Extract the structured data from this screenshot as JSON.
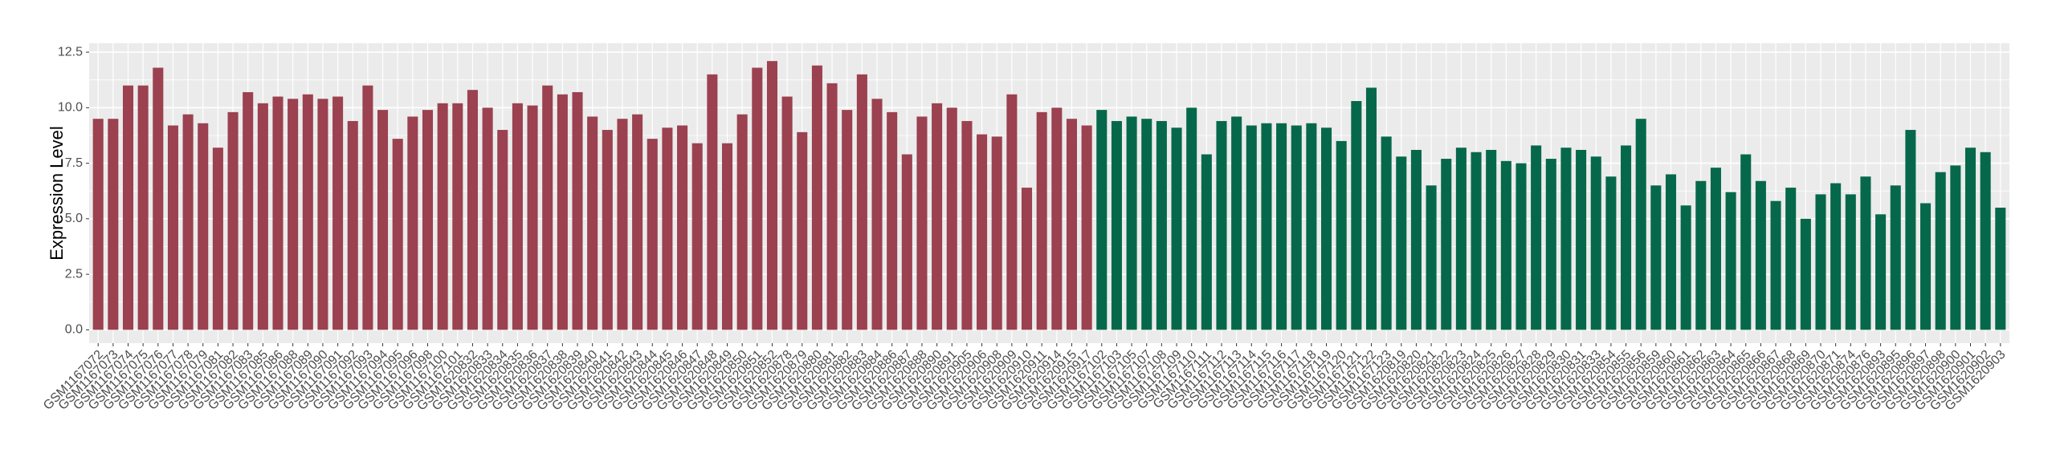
{
  "chart_data": {
    "type": "bar",
    "y_label": "Expression Level",
    "ylim": [
      -0.6,
      12.9
    ],
    "yticks": [
      {
        "value": 0,
        "label": "0.0"
      },
      2.5,
      {
        "value": 5,
        "label": "5.0"
      },
      7.5,
      {
        "value": 10,
        "label": "10.0"
      },
      12.5
    ],
    "grid": true,
    "groups": [
      {
        "color": "#9b4150",
        "categories": [
          "GSM1167072",
          "GSM1167073",
          "GSM1167074",
          "GSM1167075",
          "GSM1167076",
          "GSM1167077",
          "GSM1167078",
          "GSM1167079",
          "GSM1167081",
          "GSM1167082",
          "GSM1167083",
          "GSM1167085",
          "GSM1167086",
          "GSM1167088",
          "GSM1167089",
          "GSM1167090",
          "GSM1167091",
          "GSM1167092",
          "GSM1167093",
          "GSM1167094",
          "GSM1167095",
          "GSM1167096",
          "GSM1167098",
          "GSM1167100",
          "GSM1167101",
          "GSM1620832",
          "GSM1620833",
          "GSM1620834",
          "GSM1620835",
          "GSM1620836",
          "GSM1620837",
          "GSM1620838",
          "GSM1620839",
          "GSM1620840",
          "GSM1620841",
          "GSM1620842",
          "GSM1620843",
          "GSM1620844",
          "GSM1620845",
          "GSM1620846",
          "GSM1620847",
          "GSM1620848",
          "GSM1620849",
          "GSM1620850",
          "GSM1620851",
          "GSM1620852",
          "GSM1620878",
          "GSM1620879",
          "GSM1620880",
          "GSM1620881",
          "GSM1620882",
          "GSM1620883",
          "GSM1620884",
          "GSM1620886",
          "GSM1620887",
          "GSM1620888",
          "GSM1620890",
          "GSM1620891",
          "GSM1620905",
          "GSM1620906",
          "GSM1620908",
          "GSM1620909",
          "GSM1620910",
          "GSM1620911",
          "GSM1620914",
          "GSM1620915",
          "GSM1620917"
        ],
        "values": [
          9.5,
          9.5,
          11.0,
          11.0,
          11.8,
          9.2,
          9.7,
          9.3,
          8.2,
          9.8,
          10.7,
          10.2,
          10.5,
          10.4,
          10.6,
          10.4,
          10.5,
          9.4,
          11.0,
          9.9,
          8.6,
          9.6,
          9.9,
          10.2,
          10.2,
          10.8,
          10.0,
          9.0,
          10.2,
          10.1,
          11.0,
          10.6,
          10.7,
          9.6,
          9.0,
          9.5,
          9.7,
          8.6,
          9.1,
          9.2,
          8.4,
          11.5,
          8.4,
          9.7,
          11.8,
          12.1,
          10.5,
          8.9,
          11.9,
          11.1,
          9.9,
          11.5,
          10.4,
          9.8,
          7.9,
          9.6,
          10.2,
          10.0,
          9.4,
          8.8,
          8.7,
          10.6,
          6.4,
          9.8,
          10.0,
          9.5,
          9.2
        ]
      },
      {
        "color": "#06684a",
        "categories": [
          "GSM1167102",
          "GSM1167103",
          "GSM1167105",
          "GSM1167107",
          "GSM1167108",
          "GSM1167109",
          "GSM1167110",
          "GSM1167111",
          "GSM1167112",
          "GSM1167113",
          "GSM1167114",
          "GSM1167115",
          "GSM1167116",
          "GSM1167117",
          "GSM1167118",
          "GSM1167119",
          "GSM1167120",
          "GSM1167121",
          "GSM1167122",
          "GSM1167123",
          "GSM1620819",
          "GSM1620820",
          "GSM1620821",
          "GSM1620822",
          "GSM1620823",
          "GSM1620824",
          "GSM1620825",
          "GSM1620826",
          "GSM1620827",
          "GSM1620828",
          "GSM1620829",
          "GSM1620830",
          "GSM1620831",
          "GSM1620833",
          "GSM1620854",
          "GSM1620855",
          "GSM1620856",
          "GSM1620859",
          "GSM1620860",
          "GSM1620861",
          "GSM1620862",
          "GSM1620863",
          "GSM1620864",
          "GSM1620865",
          "GSM1620866",
          "GSM1620867",
          "GSM1620868",
          "GSM1620869",
          "GSM1620870",
          "GSM1620871",
          "GSM1620874",
          "GSM1620876",
          "GSM1620893",
          "GSM1620895",
          "GSM1620896",
          "GSM1620897",
          "GSM1620898",
          "GSM1620900",
          "GSM1620901",
          "GSM1620902",
          "GSM1620903"
        ],
        "values": [
          9.9,
          9.4,
          9.6,
          9.5,
          9.4,
          9.1,
          10.0,
          7.9,
          9.4,
          9.6,
          9.2,
          9.3,
          9.3,
          9.2,
          9.3,
          9.1,
          8.5,
          10.3,
          10.9,
          8.7,
          7.8,
          8.1,
          6.5,
          7.7,
          8.2,
          8.0,
          8.1,
          7.6,
          7.5,
          8.3,
          7.7,
          8.2,
          8.1,
          7.8,
          6.9,
          8.3,
          9.5,
          6.5,
          7.0,
          5.6,
          6.7,
          7.3,
          6.2,
          7.9,
          6.7,
          5.8,
          6.4,
          5.0,
          6.1,
          6.6,
          6.1,
          6.9,
          5.2,
          6.5,
          9.0,
          5.7,
          7.1,
          7.4,
          8.2,
          8.0,
          5.5
        ]
      }
    ]
  }
}
